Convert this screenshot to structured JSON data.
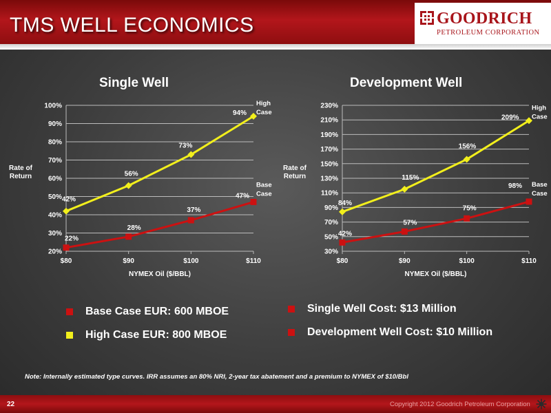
{
  "header": {
    "title": "TMS WELL ECONOMICS",
    "logo_name": "GOODRICH",
    "logo_sub": "PETROLEUM CORPORATION"
  },
  "colors": {
    "base_case": "#cc1111",
    "high_case": "#f2ef1c",
    "brand_red": "#a8151b"
  },
  "chart_data": [
    {
      "type": "line",
      "title": "Single Well",
      "xlabel": "NYMEX Oil ($/BBL)",
      "ylabel": "Rate of Return",
      "categories": [
        "$80",
        "$90",
        "$100",
        "$110"
      ],
      "ylim": [
        20,
        100
      ],
      "yticks": [
        20,
        30,
        40,
        50,
        60,
        70,
        80,
        90,
        100
      ],
      "ytick_format": "percent",
      "grid": true,
      "series": [
        {
          "name": "High Case",
          "color": "#f2ef1c",
          "marker": "diamond",
          "values": [
            42,
            56,
            73,
            94
          ],
          "labels": [
            "42%",
            "56%",
            "73%",
            "94%"
          ]
        },
        {
          "name": "Base Case",
          "color": "#cc1111",
          "marker": "square",
          "values": [
            22,
            28,
            37,
            47
          ],
          "labels": [
            "22%",
            "28%",
            "37%",
            "47%"
          ]
        }
      ]
    },
    {
      "type": "line",
      "title": "Development Well",
      "xlabel": "NYMEX Oil ($/BBL)",
      "ylabel": "Rate of Return",
      "categories": [
        "$80",
        "$90",
        "$100",
        "$110"
      ],
      "ylim": [
        30,
        230
      ],
      "yticks": [
        30,
        50,
        70,
        90,
        110,
        130,
        150,
        170,
        190,
        210,
        230
      ],
      "ytick_format": "percent",
      "grid": true,
      "series": [
        {
          "name": "High Case",
          "color": "#f2ef1c",
          "marker": "diamond",
          "values": [
            84,
            115,
            156,
            209
          ],
          "labels": [
            "84%",
            "115%",
            "156%",
            "209%"
          ]
        },
        {
          "name": "Base Case",
          "color": "#cc1111",
          "marker": "square",
          "values": [
            42,
            57,
            75,
            98
          ],
          "labels": [
            "42%",
            "57%",
            "75%",
            "98%"
          ]
        }
      ]
    }
  ],
  "legend": [
    {
      "text": "Base Case EUR: 600 MBOE",
      "color": "#cc1111"
    },
    {
      "text": "High Case EUR: 800 MBOE",
      "color": "#f2ef1c"
    },
    {
      "text": "Single Well Cost: $13 Million",
      "color": "#cc1111"
    },
    {
      "text": "Development Well Cost: $10 Million",
      "color": "#cc1111"
    }
  ],
  "note": "Note:  Internally estimated type curves.  IRR assumes an 80% NRI, 2-year tax abatement and a premium to NYMEX of $10/Bbl",
  "footer": {
    "page_number": "22",
    "copyright": "Copyright 2012 Goodrich Petroleum Corporation"
  }
}
